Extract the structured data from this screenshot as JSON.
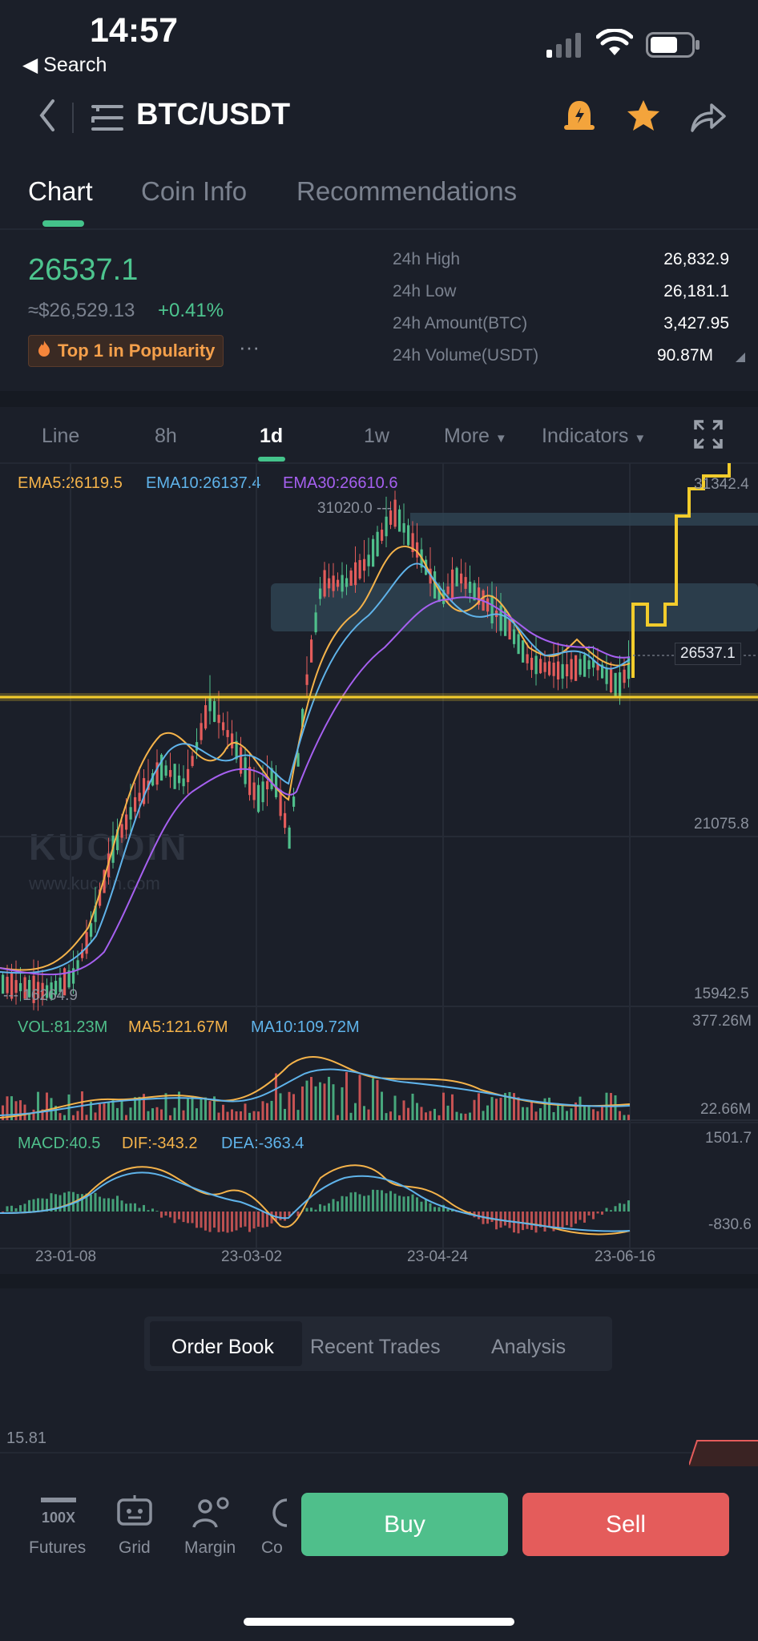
{
  "status": {
    "time": "14:57",
    "back_label": "◀ Search"
  },
  "nav": {
    "pair": "BTC/USDT"
  },
  "tabs": [
    "Chart",
    "Coin Info",
    "Recommendations"
  ],
  "ticker": {
    "price": "26537.1",
    "approx": "≈$26,529.13",
    "change": "+0.41%",
    "popularity": "Top 1 in Popularity",
    "more": "···",
    "stats": [
      {
        "label": "24h High",
        "value": "26,832.9"
      },
      {
        "label": "24h Low",
        "value": "26,181.1"
      },
      {
        "label": "24h Amount(BTC)",
        "value": "3,427.95"
      },
      {
        "label": "24h Volume(USDT)",
        "value": "90.87M"
      }
    ]
  },
  "timeframes": [
    "Line",
    "8h",
    "1d",
    "1w",
    "More",
    "Indicators"
  ],
  "indicators": {
    "ema5": "EMA5:26119.5",
    "ema10": "EMA10:26137.4",
    "ema30": "EMA30:26610.6",
    "vol": "VOL:81.23M",
    "ma5": "MA5:121.67M",
    "ma10": "MA10:109.72M",
    "macd": "MACD:40.5",
    "dif": "DIF:-343.2",
    "dea": "DEA:-363.4"
  },
  "chart_data": {
    "type": "candlestick",
    "y_labels": [
      "31342.4",
      "21075.8",
      "15942.5"
    ],
    "current_price": "26537.1",
    "high_marker": "31020.0",
    "low_marker": "16264.9",
    "volume_axis": [
      "377.26M",
      "22.66M"
    ],
    "macd_axis": [
      "1501.7",
      "-830.6"
    ],
    "x_labels": [
      "23-01-08",
      "23-03-02",
      "23-04-24",
      "23-06-16"
    ]
  },
  "watermark": {
    "brand": "KUCOIN",
    "url": "www.kucoin.com"
  },
  "book": {
    "tabs": [
      "Order Book",
      "Recent Trades",
      "Analysis"
    ],
    "value": "15.81"
  },
  "toolbar": {
    "items": [
      "Futures",
      "Grid",
      "Margin",
      "Co"
    ],
    "futures_icon_text": "100X",
    "buy": "Buy",
    "sell": "Sell"
  },
  "colors": {
    "up": "#4fbf8b",
    "down": "#e45c5b",
    "ema5": "#f5b34a",
    "ema10": "#5fb3ea",
    "ema30": "#a660f0",
    "annotation": "#f2cc2c"
  }
}
